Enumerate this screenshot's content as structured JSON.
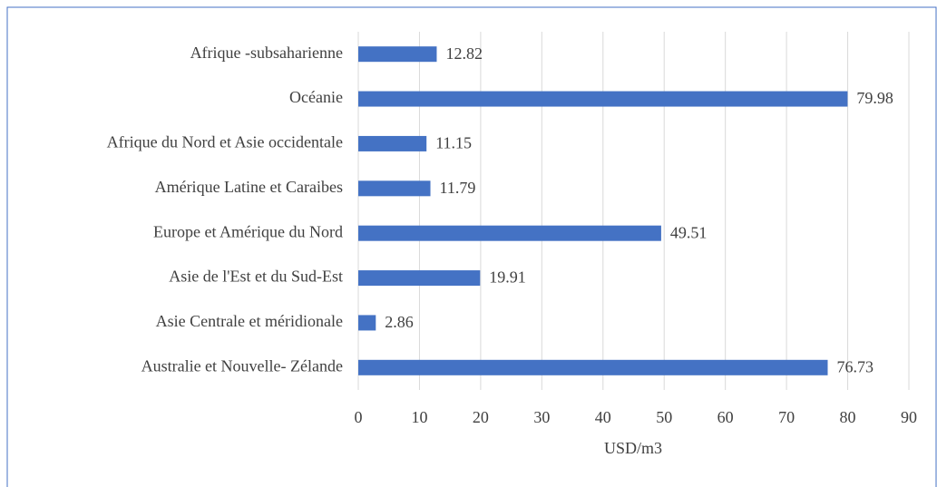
{
  "chart_data": {
    "type": "hbar",
    "categories": [
      "Afrique -subsaharienne",
      "Océanie",
      "Afrique du Nord et Asie occidentale",
      "Amérique Latine et Caraibes",
      "Europe et Amérique du Nord",
      "Asie de l'Est et du Sud-Est",
      "Asie Centrale et méridionale",
      "Australie et Nouvelle- Zélande"
    ],
    "values": [
      12.82,
      79.98,
      11.15,
      11.79,
      49.51,
      19.91,
      2.86,
      76.73
    ],
    "color": "#4472c4",
    "xlabel": "USD/m3",
    "xlim": [
      0,
      90
    ],
    "xticks": [
      0,
      10,
      20,
      30,
      40,
      50,
      60,
      70,
      80,
      90
    ],
    "grid": true
  }
}
